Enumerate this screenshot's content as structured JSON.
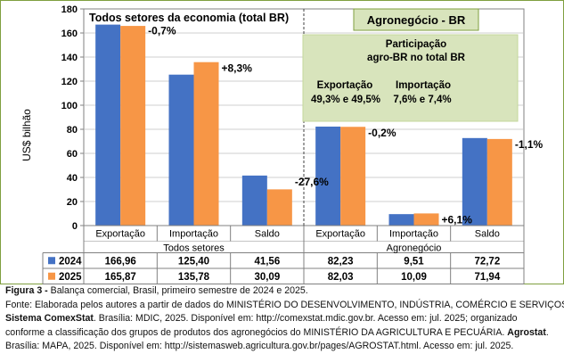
{
  "chart_data": {
    "type": "bar",
    "ylabel": "US$ bilhão",
    "ylim": [
      0,
      180
    ],
    "yticks": [
      0,
      20,
      40,
      60,
      80,
      100,
      120,
      140,
      160,
      180
    ],
    "grid": true,
    "categories": [
      "Exportação",
      "Importação",
      "Saldo",
      "Exportação",
      "Importação",
      "Saldo"
    ],
    "groups": [
      {
        "label": "Todos setores",
        "categories": [
          0,
          1,
          2
        ]
      },
      {
        "label": "Agronegócio",
        "categories": [
          3,
          4,
          5
        ]
      }
    ],
    "series": [
      {
        "name": "2024",
        "color": "#4472C4",
        "values": [
          166.96,
          125.4,
          41.56,
          82.23,
          9.51,
          72.72
        ],
        "labels": [
          "166,96",
          "125,40",
          "41,56",
          "82,23",
          "9,51",
          "72,72"
        ]
      },
      {
        "name": "2025",
        "color": "#F79646",
        "values": [
          165.87,
          135.78,
          30.09,
          82.03,
          10.09,
          71.94
        ],
        "labels": [
          "165,87",
          "135,78",
          "30,09",
          "82,03",
          "10,09",
          "71,94"
        ]
      }
    ],
    "annotations": [
      "-0,7%",
      "+8,3%",
      "-27,6%",
      "-0,2%",
      "+6,1%",
      "-1,1%"
    ],
    "panel_left_title": "Todos setores da economia (total BR)",
    "panel_right_title": "Agronegócio - BR",
    "info_box": {
      "title_line1": "Participação",
      "title_line2": "agro-BR no total BR",
      "export_label": "Exportação",
      "export_value": "49,3% e 49,5%",
      "import_label": "Importação",
      "import_value": "7,6% e 7,4%"
    }
  },
  "caption": {
    "line1_bold": "Figura 3 -",
    "line1": " Balança comercial, Brasil, primeiro semestre de 2024 e 2025.",
    "line2": "Fonte: Elaborada pelos autores a partir de dados do MINISTÉRIO DO DESENVOLVIMENTO, INDÚSTRIA, COMÉRCIO E SERVIÇOS.",
    "line3_bold": "Sistema ComexStat",
    "line3": ". Brasília: MDIC, 2025. Disponível em: http://comexstat.mdic.gov.br. Acesso em: jul. 2025; organizado",
    "line4": "conforme a classificação dos grupos de produtos dos agronegócios do MINISTÉRIO DA AGRICULTURA E PECUÁRIA. ",
    "line4_bold": "Agrostat",
    "line4_end": ".",
    "line5": "Brasília: MAPA, 2025. Disponível em: http://sistemasweb.agricultura.gov.br/pages/AGROSTAT.html. Acesso em: jul. 2025."
  }
}
